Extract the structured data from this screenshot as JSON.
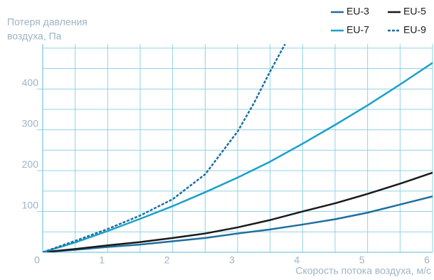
{
  "chart_data": {
    "type": "line",
    "ylabel": [
      "Потеря давления",
      "воздуха, Па"
    ],
    "xlabel": "Скорость потока воздуха, м/с",
    "x": [
      0,
      0.5,
      1,
      1.5,
      2,
      2.5,
      3,
      3.5,
      4,
      4.5,
      5,
      5.5,
      6
    ],
    "series": [
      {
        "name": "EU-3",
        "color": "#1e6f9f",
        "dash": false,
        "values": [
          0,
          6,
          13,
          19,
          27,
          35,
          46,
          56,
          68,
          81,
          97,
          117,
          137
        ]
      },
      {
        "name": "EU-5",
        "color": "#1a1a1a",
        "dash": false,
        "values": [
          0,
          8,
          17,
          25,
          35,
          46,
          61,
          79,
          100,
          120,
          143,
          168,
          195
        ]
      },
      {
        "name": "EU-7",
        "color": "#1ba0cc",
        "dash": false,
        "values": [
          0,
          24,
          52,
          82,
          113,
          147,
          183,
          222,
          266,
          312,
          360,
          411,
          464
        ]
      },
      {
        "name": "EU-9",
        "color": "#1e6f9f",
        "dash": true,
        "x": [
          0,
          0.5,
          1,
          1.5,
          2,
          2.5,
          3,
          3.25,
          3.5,
          3.73
        ],
        "values": [
          0,
          28,
          57,
          90,
          130,
          191,
          296,
          365,
          443,
          510
        ]
      }
    ],
    "xlim": [
      0,
      6
    ],
    "ylim": [
      0,
      510
    ],
    "xticks": [
      0,
      1,
      2,
      3,
      4,
      5,
      6
    ],
    "yticks": [
      100,
      200,
      300,
      400
    ],
    "xgrid": [
      0.5,
      1,
      1.5,
      2,
      2.5,
      3,
      3.5,
      4,
      4.5,
      5,
      5.5,
      6
    ],
    "ygrid": [
      50,
      100,
      150,
      200,
      250,
      300,
      350,
      400,
      450,
      500
    ],
    "grid_color": "#8fd3e6"
  }
}
